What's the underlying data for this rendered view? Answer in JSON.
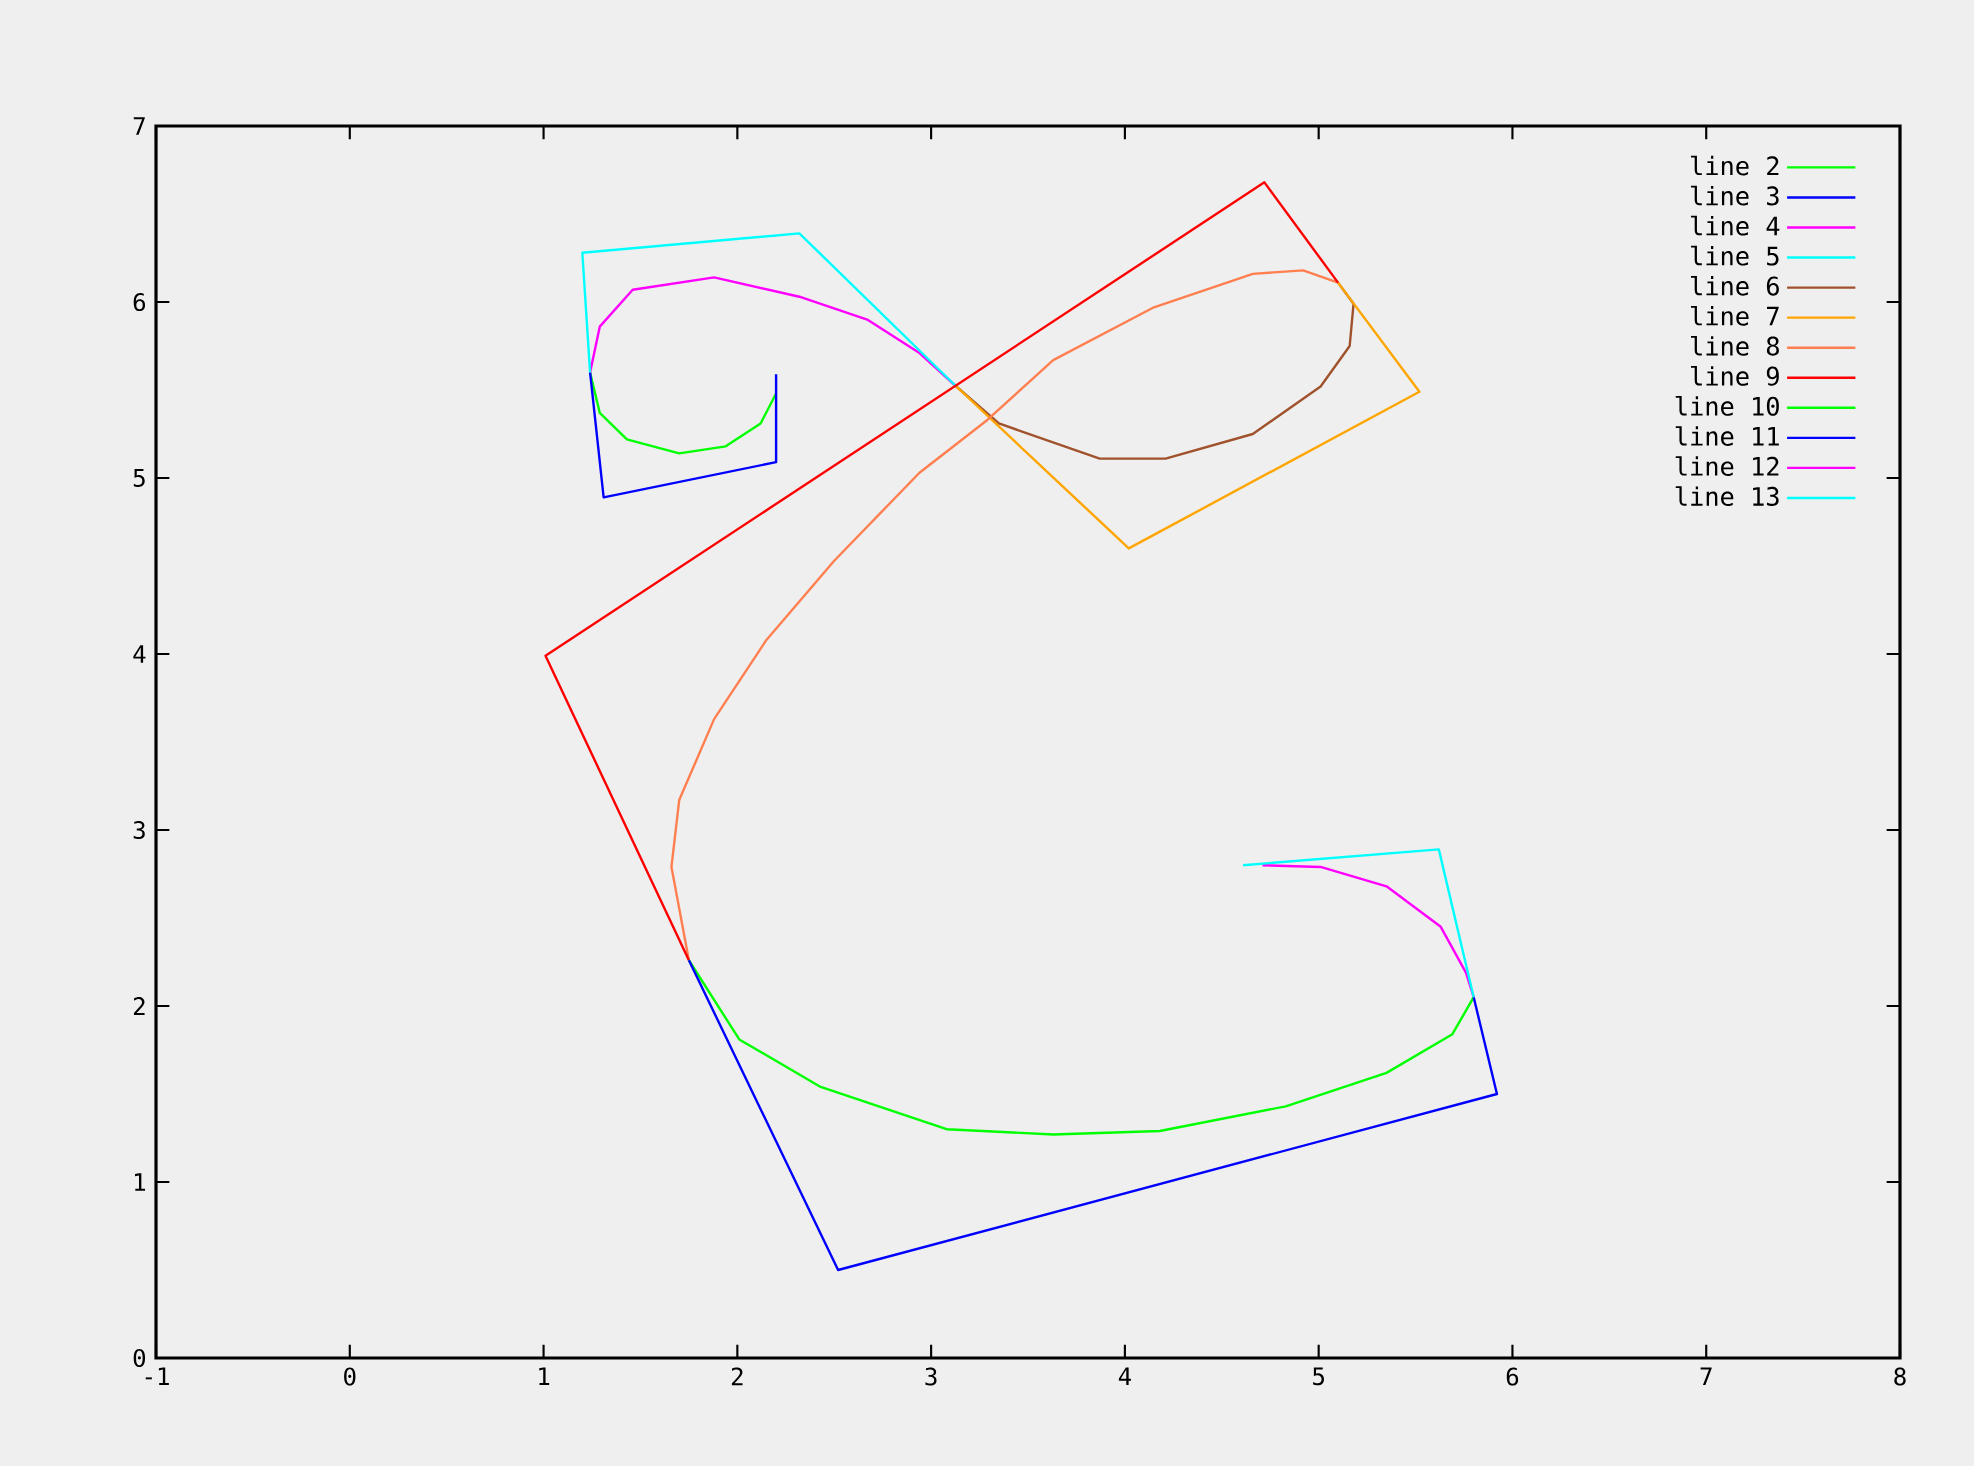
{
  "chart_data": {
    "type": "line",
    "xlim": [
      -1,
      8
    ],
    "ylim": [
      0,
      7
    ],
    "xticks": [
      -1,
      0,
      1,
      2,
      3,
      4,
      5,
      6,
      7,
      8
    ],
    "yticks": [
      0,
      1,
      2,
      3,
      4,
      5,
      6,
      7
    ],
    "legend": "top right",
    "series": [
      {
        "name": "line 2",
        "color": "#00ff00",
        "x": [
          1.24,
          1.29,
          1.43,
          1.7,
          1.94,
          2.12,
          2.2
        ],
        "values": [
          5.6,
          5.37,
          5.22,
          5.14,
          5.18,
          5.31,
          5.48
        ]
      },
      {
        "name": "line 3",
        "color": "#0000ff",
        "x": [
          2.2,
          2.2,
          1.31,
          1.24
        ],
        "values": [
          5.59,
          5.09,
          4.89,
          5.6
        ]
      },
      {
        "name": "line 4",
        "color": "#ff00ff",
        "x": [
          1.24,
          1.29,
          1.46,
          1.88,
          2.32,
          2.67,
          2.94,
          3.13
        ],
        "values": [
          5.6,
          5.86,
          6.07,
          6.14,
          6.03,
          5.9,
          5.71,
          5.52
        ]
      },
      {
        "name": "line 5",
        "color": "#00ffff",
        "x": [
          1.24,
          1.2,
          2.32,
          3.13
        ],
        "values": [
          5.6,
          6.28,
          6.39,
          5.52
        ]
      },
      {
        "name": "line 6",
        "color": "#a0522d",
        "x": [
          3.13,
          3.35,
          3.87,
          4.21,
          4.66,
          5.01,
          5.16,
          5.18,
          5.1
        ],
        "values": [
          5.52,
          5.31,
          5.11,
          5.11,
          5.25,
          5.52,
          5.75,
          5.99,
          6.11
        ]
      },
      {
        "name": "line 7",
        "color": "#ffa500",
        "x": [
          3.13,
          4.02,
          5.52,
          5.1
        ],
        "values": [
          5.52,
          4.6,
          5.49,
          6.11
        ]
      },
      {
        "name": "line 8",
        "color": "#ff7f50",
        "x": [
          5.1,
          4.92,
          4.66,
          4.15,
          3.63,
          3.29,
          2.94,
          2.5,
          2.15,
          1.88,
          1.7,
          1.66,
          1.75
        ],
        "values": [
          6.11,
          6.18,
          6.16,
          5.97,
          5.67,
          5.33,
          5.03,
          4.53,
          4.08,
          3.63,
          3.17,
          2.79,
          2.26
        ]
      },
      {
        "name": "line 9",
        "color": "#ff0000",
        "x": [
          1.75,
          1.01,
          4.72,
          5.1
        ],
        "values": [
          2.26,
          3.99,
          6.68,
          6.11
        ]
      },
      {
        "name": "line 10",
        "color": "#00ff00",
        "x": [
          1.75,
          2.01,
          2.43,
          3.08,
          3.63,
          4.18,
          4.83,
          5.35,
          5.69,
          5.8
        ],
        "values": [
          2.26,
          1.81,
          1.54,
          1.3,
          1.27,
          1.29,
          1.43,
          1.62,
          1.84,
          2.05
        ]
      },
      {
        "name": "line 11",
        "color": "#0000ff",
        "x": [
          1.75,
          2.52,
          5.92,
          5.8
        ],
        "values": [
          2.26,
          0.5,
          1.5,
          2.05
        ]
      },
      {
        "name": "line 12",
        "color": "#ff00ff",
        "x": [
          5.8,
          5.76,
          5.63,
          5.35,
          5.01,
          4.71
        ],
        "values": [
          2.05,
          2.19,
          2.45,
          2.68,
          2.79,
          2.8
        ]
      },
      {
        "name": "line 13",
        "color": "#00ffff",
        "x": [
          5.8,
          5.62,
          4.61
        ],
        "values": [
          2.05,
          2.89,
          2.8
        ]
      }
    ]
  }
}
